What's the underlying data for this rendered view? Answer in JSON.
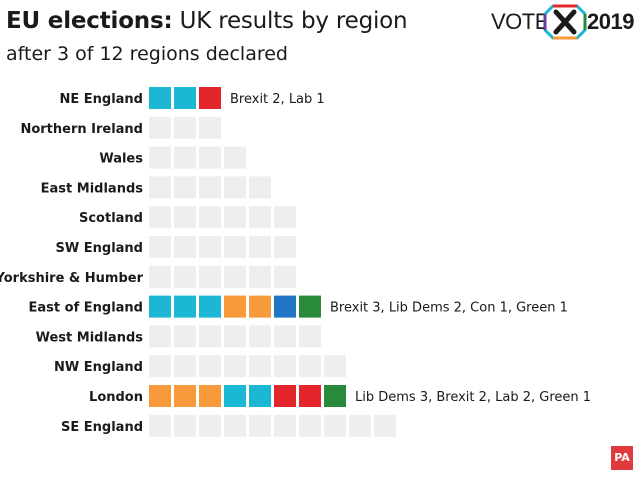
{
  "header": {
    "title_bold": "EU elections:",
    "title_rest": " UK results by region",
    "subtitle": "after 3 of 12 regions declared",
    "logo_word": "VOTE",
    "logo_year": "2019",
    "credit": "PA"
  },
  "colors": {
    "Brexit": "#1bb7d3",
    "Lab": "#e3262b",
    "Lib Dems": "#f79a3b",
    "Con": "#1f77c4",
    "Green": "#2a8a3c",
    "undeclared": "#eeeeee"
  },
  "chart_data": {
    "type": "table",
    "title": "EU elections: UK results by region",
    "subtitle": "after 3 of 12 regions declared",
    "unit": "seats (one square per MEP)",
    "rows": [
      {
        "region": "NE England",
        "seats": 3,
        "declared": true,
        "parties": [
          "Brexit",
          "Brexit",
          "Lab"
        ],
        "label": "Brexit 2, Lab 1"
      },
      {
        "region": "Northern Ireland",
        "seats": 3,
        "declared": false,
        "parties": [],
        "label": ""
      },
      {
        "region": "Wales",
        "seats": 4,
        "declared": false,
        "parties": [],
        "label": ""
      },
      {
        "region": "East Midlands",
        "seats": 5,
        "declared": false,
        "parties": [],
        "label": ""
      },
      {
        "region": "Scotland",
        "seats": 6,
        "declared": false,
        "parties": [],
        "label": ""
      },
      {
        "region": "SW England",
        "seats": 6,
        "declared": false,
        "parties": [],
        "label": ""
      },
      {
        "region": "Yorkshire & Humber",
        "seats": 6,
        "declared": false,
        "parties": [],
        "label": ""
      },
      {
        "region": "East of England",
        "seats": 7,
        "declared": true,
        "parties": [
          "Brexit",
          "Brexit",
          "Brexit",
          "Lib Dems",
          "Lib Dems",
          "Con",
          "Green"
        ],
        "label": "Brexit 3, Lib Dems 2, Con 1, Green 1"
      },
      {
        "region": "West Midlands",
        "seats": 7,
        "declared": false,
        "parties": [],
        "label": ""
      },
      {
        "region": "NW England",
        "seats": 8,
        "declared": false,
        "parties": [],
        "label": ""
      },
      {
        "region": "London",
        "seats": 8,
        "declared": true,
        "parties": [
          "Lib Dems",
          "Lib Dems",
          "Lib Dems",
          "Brexit",
          "Brexit",
          "Lab",
          "Lab",
          "Green"
        ],
        "label": "Lib Dems 3, Brexit 2, Lab 2, Green 1"
      },
      {
        "region": "SE England",
        "seats": 10,
        "declared": false,
        "parties": [],
        "label": ""
      }
    ]
  }
}
